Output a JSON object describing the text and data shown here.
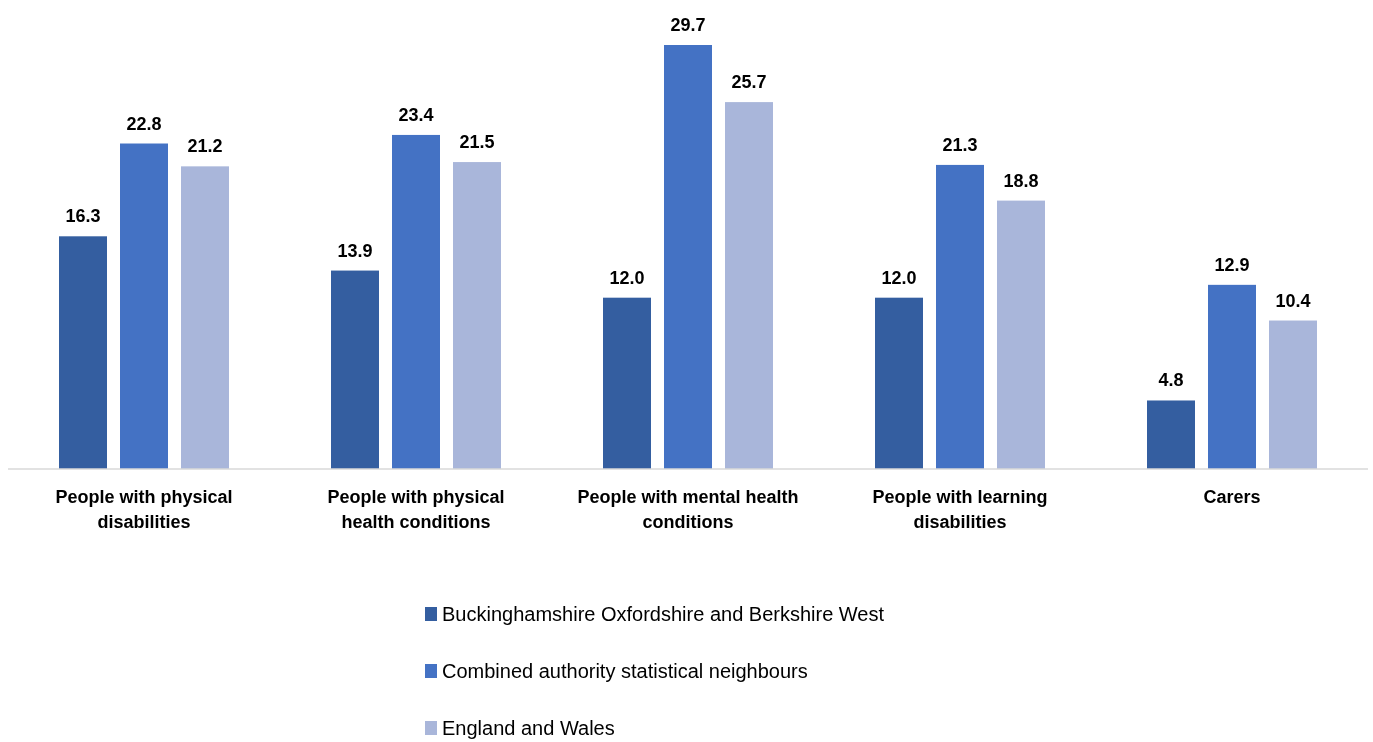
{
  "chart_data": {
    "type": "bar",
    "categories": [
      "People with physical disabilities",
      "People with physical health conditions",
      "People with mental health conditions",
      "People with learning disabilities",
      "Carers"
    ],
    "series": [
      {
        "name": "Buckinghamshire Oxfordshire and Berkshire West",
        "color": "#345ea0",
        "values": [
          16.3,
          13.9,
          12.0,
          12.0,
          4.8
        ],
        "value_labels": [
          "16.3",
          "13.9",
          "12.0",
          "12.0",
          "4.8"
        ]
      },
      {
        "name": "Combined authority statistical neighbours",
        "color": "#4472c4",
        "values": [
          22.8,
          23.4,
          29.7,
          21.3,
          12.9
        ],
        "value_labels": [
          "22.8",
          "23.4",
          "29.7",
          "21.3",
          "12.9"
        ]
      },
      {
        "name": "England and Wales",
        "color": "#a9b6da",
        "values": [
          21.2,
          21.5,
          25.7,
          18.8,
          10.4
        ],
        "value_labels": [
          "21.2",
          "21.5",
          "25.7",
          "18.8",
          "10.4"
        ]
      }
    ],
    "legend": "bottom"
  }
}
